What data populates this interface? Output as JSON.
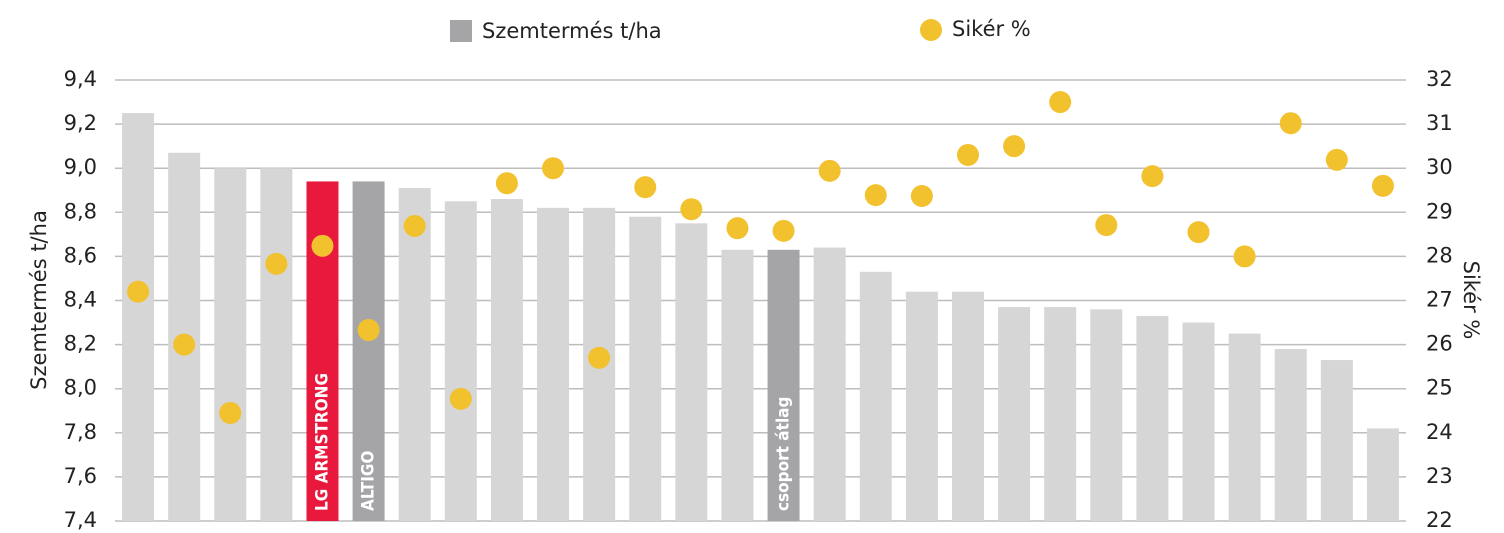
{
  "chart_data": {
    "type": "bar_scatter",
    "legend_position": "top",
    "y_label": "Szemtermés  t/ha",
    "y2_label": "Sikér %",
    "categories": [
      null,
      null,
      null,
      null,
      "LG ARMSTRONG",
      "ALTIGO",
      null,
      null,
      null,
      null,
      null,
      null,
      null,
      null,
      "csoport átlag",
      null,
      null,
      null,
      null,
      null,
      null,
      null,
      null,
      null,
      null,
      null,
      null,
      null
    ],
    "series": [
      {
        "name": "Szemtermés t/ha",
        "color": "#a5a5a8",
        "colors": [
          "#d6d6d6",
          "#d6d6d6",
          "#d6d6d6",
          "#d6d6d6",
          "#e8193c",
          "#a5a5a8",
          "#d6d6d6",
          "#d6d6d6",
          "#d6d6d6",
          "#d6d6d6",
          "#d6d6d6",
          "#d6d6d6",
          "#d6d6d6",
          "#d6d6d6",
          "#a5a5a8",
          "#d6d6d6",
          "#d6d6d6",
          "#d6d6d6",
          "#d6d6d6",
          "#d6d6d6",
          "#d6d6d6",
          "#d6d6d6",
          "#d6d6d6",
          "#d6d6d6",
          "#d6d6d6",
          "#d6d6d6",
          "#d6d6d6",
          "#d6d6d6"
        ],
        "values": [
          9.25,
          9.07,
          9.0,
          9.0,
          8.94,
          8.94,
          8.91,
          8.85,
          8.86,
          8.82,
          8.82,
          8.78,
          8.75,
          8.63,
          8.63,
          8.64,
          8.53,
          8.44,
          8.44,
          8.37,
          8.37,
          8.36,
          8.33,
          8.3,
          8.25,
          8.18,
          8.13,
          7.82
        ]
      },
      {
        "name": "Sikér %",
        "color": "#f2c12e",
        "axis": "y2",
        "values": [
          27.2,
          26.0,
          24.45,
          27.83,
          28.24,
          26.33,
          28.69,
          24.77,
          29.66,
          30.0,
          25.7,
          29.57,
          29.07,
          28.64,
          28.58,
          29.94,
          29.39,
          29.37,
          30.3,
          30.5,
          31.5,
          28.71,
          29.82,
          28.55,
          28.0,
          31.02,
          30.19,
          29.6
        ]
      }
    ],
    "ylim": [
      7.4,
      9.4
    ],
    "yticks": [
      {
        "value": 7.4,
        "label": "7,4"
      },
      {
        "value": 7.6,
        "label": "7,6"
      },
      {
        "value": 7.8,
        "label": "7,8"
      },
      {
        "value": 8.0,
        "label": "8,0"
      },
      {
        "value": 8.2,
        "label": "8,2"
      },
      {
        "value": 8.4,
        "label": "8,4"
      },
      {
        "value": 8.6,
        "label": "8,6"
      },
      {
        "value": 8.8,
        "label": "8,8"
      },
      {
        "value": 9.0,
        "label": "9,0"
      },
      {
        "value": 9.2,
        "label": "9,2"
      },
      {
        "value": 9.4,
        "label": "9,4"
      }
    ],
    "y2lim": [
      22,
      32
    ],
    "y2ticks": [
      22,
      23,
      24,
      25,
      26,
      27,
      28,
      29,
      30,
      31,
      32
    ],
    "grid": true
  }
}
